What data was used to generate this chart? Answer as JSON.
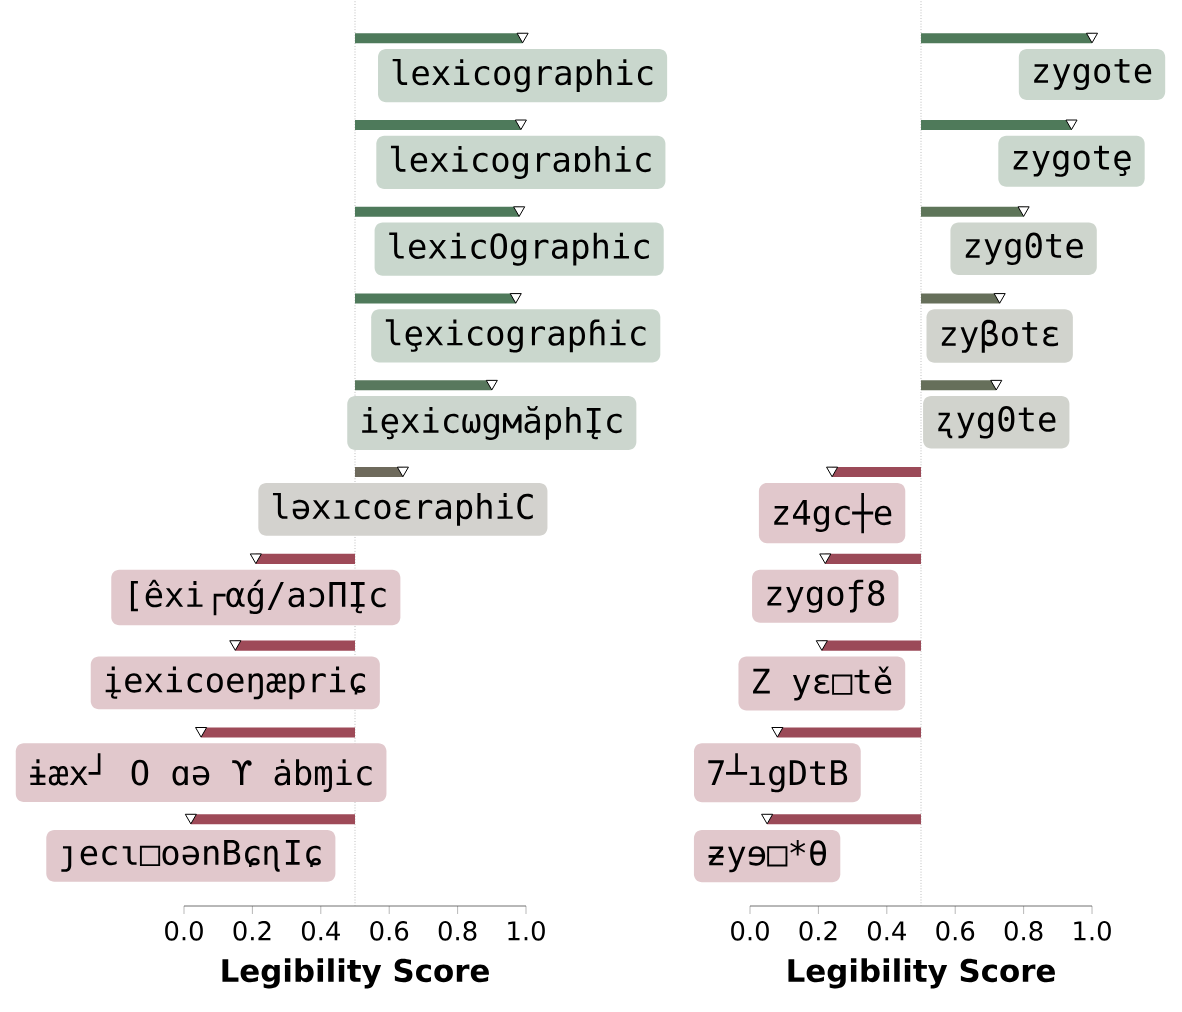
{
  "chart_data": [
    {
      "type": "bar",
      "orientation": "horizontal",
      "xlabel": "Legibility Score",
      "xlim": [
        0,
        1
      ],
      "xticks": [
        {
          "value": 0,
          "label": "0.0"
        },
        {
          "value": 0.2,
          "label": "0.2"
        },
        {
          "value": 0.4,
          "label": "0.4"
        },
        {
          "value": 0.6,
          "label": "0.6"
        },
        {
          "value": 0.8,
          "label": "0.8"
        },
        {
          "value": 1,
          "label": "1.0"
        }
      ],
      "tick_labels": "x",
      "grid": false,
      "categories": [
        "lexicographic",
        "lexicograɒhic",
        "lexicOgraphic",
        "lȩxicograpɦic",
        "iȩxicωgмăphĮc",
        "ləxıcoɛraphiC",
        "[êxi┌αǵ/aɔΠĮc",
        "įexicoeŋæpriɕ",
        "ɨæx┘ O ɑə ϒ ȧbɱic",
        "ȷecɩ□oənBɕɳIɕ"
      ],
      "ref_lines": [
        {
          "axis": "x",
          "value": 0.5,
          "color": "#999999",
          "line_style": "dotted"
        }
      ],
      "series": [
        {
          "type": "bar",
          "base": [
            0.5,
            0.5,
            0.5,
            0.5,
            0.5,
            0.5,
            0.5,
            0.5,
            0.5,
            0.5
          ],
          "values": [
            0.49,
            0.485,
            0.48,
            0.47,
            0.4,
            0.14,
            -0.29,
            -0.35,
            -0.45,
            -0.48
          ],
          "colors": [
            "#4e7a5b",
            "#4e7a5b",
            "#4e7a5b",
            "#4f7a5b",
            "#58785d",
            "#6e6a5c",
            "#9e4a58",
            "#9e4a58",
            "#9e4a58",
            "#9e4a58"
          ]
        },
        {
          "type": "scatter",
          "marker": "triangle",
          "color": "#ffffff",
          "values": [
            0.99,
            0.985,
            0.98,
            0.97,
            0.9,
            0.64,
            0.21,
            0.15,
            0.05,
            0.02
          ]
        }
      ]
    },
    {
      "type": "bar",
      "orientation": "horizontal",
      "xlabel": "Legibility Score",
      "xlim": [
        0,
        1
      ],
      "xticks": [
        {
          "value": 0,
          "label": "0.0"
        },
        {
          "value": 0.2,
          "label": "0.2"
        },
        {
          "value": 0.4,
          "label": "0.4"
        },
        {
          "value": 0.6,
          "label": "0.6"
        },
        {
          "value": 0.8,
          "label": "0.8"
        },
        {
          "value": 1,
          "label": "1.0"
        }
      ],
      "tick_labels": "x",
      "grid": false,
      "categories": [
        "zygote",
        "zygotȩ",
        "zyg0te",
        "zyβotɛ",
        "ʐyg0te",
        "z4gc┼e",
        "zygoƒ8",
        "Z yɛ□tě",
        "7┴ıgDtB",
        "ƶyɘ□*θ"
      ],
      "ref_lines": [
        {
          "axis": "x",
          "value": 0.5,
          "color": "#999999",
          "line_style": "dotted"
        }
      ],
      "series": [
        {
          "type": "bar",
          "base": [
            0.5,
            0.5,
            0.5,
            0.5,
            0.5,
            0.5,
            0.5,
            0.5,
            0.5,
            0.5
          ],
          "values": [
            0.5,
            0.44,
            0.3,
            0.23,
            0.22,
            -0.26,
            -0.28,
            -0.29,
            -0.42,
            -0.45
          ],
          "colors": [
            "#4f7a5a",
            "#4f7a5a",
            "#5e7559",
            "#666f5a",
            "#666f5a",
            "#9b4a58",
            "#9b4a58",
            "#9b4a58",
            "#9b4a58",
            "#9b4a58"
          ]
        },
        {
          "type": "scatter",
          "marker": "triangle",
          "color": "#ffffff",
          "values": [
            1.0,
            0.94,
            0.8,
            0.73,
            0.72,
            0.24,
            0.22,
            0.21,
            0.08,
            0.05
          ]
        }
      ]
    }
  ]
}
